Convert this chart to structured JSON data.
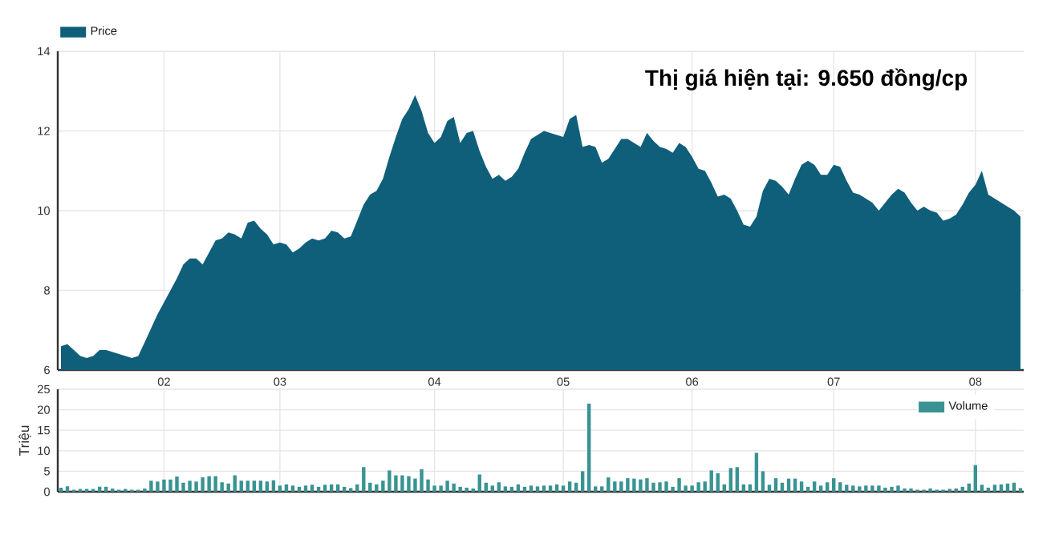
{
  "chart_data": [
    {
      "type": "area",
      "annotations": [
        "Thị giá hiện tại: 9.650 đồng/cp"
      ],
      "legend": "top left",
      "grid": true,
      "categories": [
        null,
        null,
        null,
        null,
        null,
        null,
        null,
        null,
        null,
        null,
        null,
        null,
        null,
        null,
        null,
        null,
        "02",
        null,
        null,
        null,
        null,
        null,
        null,
        null,
        null,
        null,
        null,
        null,
        null,
        null,
        null,
        null,
        null,
        null,
        "03",
        null,
        null,
        null,
        null,
        null,
        null,
        null,
        null,
        null,
        null,
        null,
        null,
        null,
        null,
        null,
        null,
        null,
        null,
        null,
        null,
        null,
        null,
        null,
        "04",
        null,
        null,
        null,
        null,
        null,
        null,
        null,
        null,
        null,
        null,
        null,
        null,
        null,
        null,
        null,
        null,
        null,
        null,
        null,
        "05",
        null,
        null,
        null,
        null,
        null,
        null,
        null,
        null,
        null,
        null,
        null,
        null,
        null,
        null,
        null,
        null,
        null,
        null,
        null,
        "06",
        null,
        null,
        null,
        null,
        null,
        null,
        null,
        null,
        null,
        null,
        null,
        null,
        null,
        null,
        null,
        null,
        null,
        null,
        null,
        null,
        null,
        "07",
        null,
        null,
        null,
        null,
        null,
        null,
        null,
        null,
        null,
        null,
        null,
        null,
        null,
        null,
        null,
        null,
        null,
        null,
        null,
        null,
        null,
        "08",
        null,
        null,
        null,
        null,
        null,
        null,
        null
      ],
      "ylim": [
        6,
        14
      ],
      "yticks": [
        6,
        8,
        10,
        12,
        14
      ],
      "series": [
        {
          "name": "Price",
          "color": "#0f5f7b",
          "values": [
            6.6,
            6.65,
            6.5,
            6.35,
            6.3,
            6.35,
            6.5,
            6.5,
            6.45,
            6.4,
            6.35,
            6.3,
            6.35,
            6.7,
            7.05,
            7.4,
            7.7,
            8.0,
            8.3,
            8.65,
            8.8,
            8.8,
            8.65,
            8.95,
            9.25,
            9.3,
            9.45,
            9.4,
            9.3,
            9.7,
            9.75,
            9.55,
            9.4,
            9.15,
            9.2,
            9.15,
            8.95,
            9.05,
            9.2,
            9.3,
            9.25,
            9.3,
            9.5,
            9.45,
            9.3,
            9.35,
            9.75,
            10.15,
            10.4,
            10.5,
            10.8,
            11.35,
            11.85,
            12.3,
            12.55,
            12.9,
            12.5,
            11.95,
            11.7,
            11.85,
            12.25,
            12.35,
            11.7,
            11.95,
            12.0,
            11.5,
            11.1,
            10.8,
            10.9,
            10.75,
            10.85,
            11.05,
            11.45,
            11.8,
            11.9,
            12.0,
            11.95,
            11.9,
            11.85,
            12.3,
            12.4,
            11.6,
            11.65,
            11.6,
            11.2,
            11.3,
            11.55,
            11.8,
            11.8,
            11.7,
            11.6,
            11.95,
            11.75,
            11.6,
            11.55,
            11.45,
            11.7,
            11.6,
            11.35,
            11.05,
            11.0,
            10.7,
            10.35,
            10.4,
            10.3,
            10.0,
            9.65,
            9.6,
            9.85,
            10.5,
            10.8,
            10.75,
            10.6,
            10.4,
            10.8,
            11.15,
            11.25,
            11.15,
            10.9,
            10.9,
            11.15,
            11.1,
            10.75,
            10.45,
            10.4,
            10.3,
            10.2,
            10.0,
            10.2,
            10.4,
            10.55,
            10.45,
            10.2,
            10.0,
            10.1,
            10.0,
            9.95,
            9.75,
            9.8,
            9.9,
            10.15,
            10.45,
            10.65,
            11.0,
            10.4,
            10.3,
            10.2,
            10.1,
            10.0,
            9.85
          ]
        }
      ]
    },
    {
      "type": "bar",
      "ylabel": "Triệu",
      "legend": "top right",
      "grid": true,
      "tick_labels": "y",
      "categories": [
        null,
        null,
        null,
        null,
        null,
        null,
        null,
        null,
        null,
        null,
        null,
        null,
        null,
        null,
        null,
        null,
        "02",
        null,
        null,
        null,
        null,
        null,
        null,
        null,
        null,
        null,
        null,
        null,
        null,
        null,
        null,
        null,
        null,
        null,
        "03",
        null,
        null,
        null,
        null,
        null,
        null,
        null,
        null,
        null,
        null,
        null,
        null,
        null,
        null,
        null,
        null,
        null,
        null,
        null,
        null,
        null,
        null,
        null,
        "04",
        null,
        null,
        null,
        null,
        null,
        null,
        null,
        null,
        null,
        null,
        null,
        null,
        null,
        null,
        null,
        null,
        null,
        null,
        null,
        "05",
        null,
        null,
        null,
        null,
        null,
        null,
        null,
        null,
        null,
        null,
        null,
        null,
        null,
        null,
        null,
        null,
        null,
        null,
        null,
        "06",
        null,
        null,
        null,
        null,
        null,
        null,
        null,
        null,
        null,
        null,
        null,
        null,
        null,
        null,
        null,
        null,
        null,
        null,
        null,
        null,
        null,
        "07",
        null,
        null,
        null,
        null,
        null,
        null,
        null,
        null,
        null,
        null,
        null,
        null,
        null,
        null,
        null,
        null,
        null,
        null,
        null,
        null,
        null,
        "08",
        null,
        null,
        null,
        null,
        null,
        null,
        null
      ],
      "ylim": [
        0,
        25
      ],
      "yticks": [
        0,
        5,
        10,
        15,
        20,
        25
      ],
      "series": [
        {
          "name": "Volume",
          "color": "#3a9393",
          "values": [
            1,
            1.3,
            0.5,
            0.7,
            0.7,
            0.7,
            1.2,
            1.2,
            0.8,
            0.5,
            0.7,
            0.5,
            0.5,
            0.8,
            2.7,
            2.5,
            3.0,
            3.0,
            3.7,
            2.2,
            2.7,
            2.5,
            3.5,
            3.8,
            3.8,
            2.3,
            2.0,
            4.0,
            2.7,
            2.7,
            2.7,
            2.7,
            2.5,
            2.8,
            1.5,
            1.8,
            1.5,
            1.2,
            1.5,
            1.7,
            1.2,
            1.7,
            1.8,
            1.8,
            1.2,
            0.9,
            1.8,
            6.0,
            2.2,
            1.8,
            2.7,
            5.2,
            4.0,
            4.0,
            3.8,
            3.2,
            5.5,
            3.0,
            1.5,
            1.5,
            2.7,
            2.0,
            1.2,
            1.0,
            0.8,
            4.2,
            2.2,
            1.5,
            2.3,
            1.3,
            1.2,
            1.8,
            1.2,
            1.5,
            1.3,
            1.5,
            1.5,
            1.8,
            1.5,
            2.5,
            2.2,
            5.0,
            21.5,
            1.3,
            1.3,
            3.5,
            2.5,
            2.5,
            3.3,
            3.2,
            3.0,
            3.3,
            2.2,
            2.3,
            2.5,
            1.2,
            3.3,
            1.5,
            1.5,
            2.3,
            2.5,
            5.2,
            4.5,
            1.8,
            5.8,
            6.0,
            1.8,
            1.8,
            9.5,
            5.0,
            1.7,
            3.3,
            2.2,
            3.2,
            3.2,
            2.5,
            1.2,
            2.5,
            1.5,
            2.3,
            3.3,
            2.3,
            1.7,
            1.5,
            1.3,
            1.5,
            1.5,
            1.5,
            1.0,
            1.2,
            1.5,
            0.8,
            0.8,
            0.5,
            0.5,
            0.8,
            0.5,
            0.5,
            0.7,
            0.8,
            1.2,
            2.0,
            6.5,
            1.7,
            1.0,
            1.7,
            1.8,
            2.0,
            2.2,
            0.9
          ]
        }
      ]
    }
  ]
}
